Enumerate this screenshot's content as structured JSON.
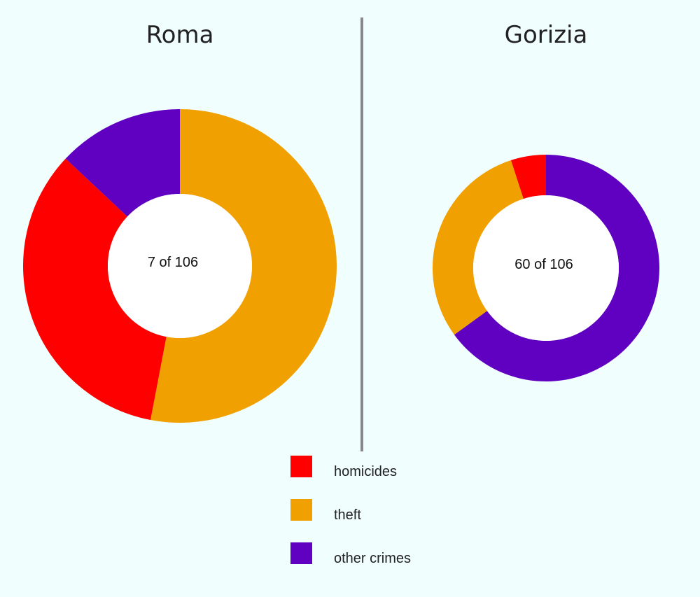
{
  "chart_data": [
    {
      "type": "pie",
      "title": "Roma",
      "center_label": "7 of 106",
      "slices": [
        {
          "label": "theft",
          "value": 53
        },
        {
          "label": "homicides",
          "value": 34
        },
        {
          "label": "other crimes",
          "value": 13
        }
      ]
    },
    {
      "type": "pie",
      "title": "Gorizia",
      "center_label": "60 of 106",
      "slices": [
        {
          "label": "other crimes",
          "value": 65
        },
        {
          "label": "theft",
          "value": 30
        },
        {
          "label": "homicides",
          "value": 5
        }
      ]
    }
  ],
  "legend": [
    {
      "label": "homicides",
      "color": "#ff0000"
    },
    {
      "label": "theft",
      "color": "#f0a000"
    },
    {
      "label": "other crimes",
      "color": "#6000c0"
    }
  ]
}
